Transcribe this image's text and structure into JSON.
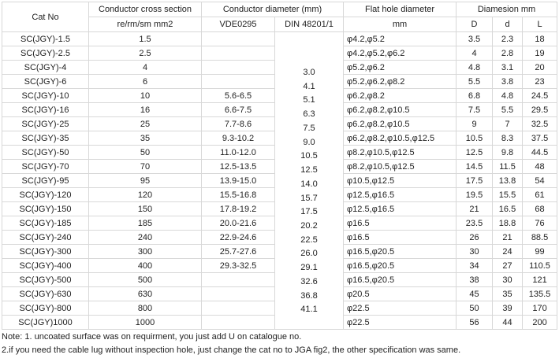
{
  "header": {
    "cat_no": "Cat No",
    "cross_section": "Conductor cross section",
    "cross_unit": "re/rm/sm mm2",
    "diameter": "Conductor diameter (mm)",
    "vde": "VDE0295",
    "din": "DIN 48201/1",
    "flat_hole": "Flat hole diameter",
    "flat_unit": "mm",
    "dimension": "Diamesion mm",
    "D": "D",
    "d": "d",
    "L": "L"
  },
  "table": {
    "rows": [
      [
        "SC(JGY)-1.5",
        "1.5",
        null,
        "φ4.2,φ5.2",
        "3.5",
        "2.3",
        "18"
      ],
      [
        "SC(JGY)-2.5",
        "2.5",
        null,
        "φ4.2,φ5.2,φ6.2",
        "4",
        "2.8",
        "19"
      ],
      [
        "SC(JGY)-4",
        "4",
        null,
        "φ5.2,φ6.2",
        "4.8",
        "3.1",
        "20"
      ],
      [
        "SC(JGY)-6",
        "6",
        null,
        "φ5.2,φ6.2,φ8.2",
        "5.5",
        "3.8",
        "23"
      ],
      [
        "SC(JGY)-10",
        "10",
        "5.6-6.5",
        "φ6.2,φ8.2",
        "6.8",
        "4.8",
        "24.5"
      ],
      [
        "SC(JGY)-16",
        "16",
        "6.6-7.5",
        "φ6.2,φ8.2,φ10.5",
        "7.5",
        "5.5",
        "29.5"
      ],
      [
        "SC(JGY)-25",
        "25",
        "7.7-8.6",
        "φ6.2,φ8.2,φ10.5",
        "9",
        "7",
        "32.5"
      ],
      [
        "SC(JGY)-35",
        "35",
        "9.3-10.2",
        "φ6.2,φ8.2,φ10.5,φ12.5",
        "10.5",
        "8.3",
        "37.5"
      ],
      [
        "SC(JGY)-50",
        "50",
        "11.0-12.0",
        "φ8.2,φ10.5,φ12.5",
        "12.5",
        "9.8",
        "44.5"
      ],
      [
        "SC(JGY)-70",
        "70",
        "12.5-13.5",
        "φ8.2,φ10.5,φ12.5",
        "14.5",
        "11.5",
        "48"
      ],
      [
        "SC(JGY)-95",
        "95",
        "13.9-15.0",
        "φ10.5,φ12.5",
        "17.5",
        "13.8",
        "54"
      ],
      [
        "SC(JGY)-120",
        "120",
        "15.5-16.8",
        "φ12.5,φ16.5",
        "19.5",
        "15.5",
        "61"
      ],
      [
        "SC(JGY)-150",
        "150",
        "17.8-19.2",
        "φ12.5,φ16.5",
        "21",
        "16.5",
        "68"
      ],
      [
        "SC(JGY)-185",
        "185",
        "20.0-21.6",
        "φ16.5",
        "23.5",
        "18.8",
        "76"
      ],
      [
        "SC(JGY)-240",
        "240",
        "22.9-24.6",
        "φ16.5",
        "26",
        "21",
        "88.5"
      ],
      [
        "SC(JGY)-300",
        "300",
        "25.7-27.6",
        "φ16.5,φ20.5",
        "30",
        "24",
        "99"
      ],
      [
        "SC(JGY)-400",
        "400",
        "29.3-32.5",
        "φ16.5,φ20.5",
        "34",
        "27",
        "110.5"
      ],
      [
        "SC(JGY)-500",
        "500",
        null,
        "φ16.5,φ20.5",
        "38",
        "30",
        "121"
      ],
      [
        "SC(JGY)-630",
        "630",
        null,
        "φ20.5",
        "45",
        "35",
        "135.5"
      ],
      [
        "SC(JGY)-800",
        "800",
        null,
        "φ22.5",
        "50",
        "39",
        "170"
      ],
      [
        "SC(JGY)1000",
        "1000",
        null,
        "φ22.5",
        "56",
        "44",
        "200"
      ]
    ],
    "din": [
      "3.0",
      "4.1",
      "5.1",
      "6.3",
      "7.5",
      "9.0",
      "10.5",
      "12.5",
      "14.0",
      "15.7",
      "17.5",
      "20.2",
      "22.5",
      "26.0",
      "29.1",
      "32.6",
      "36.8",
      "41.1"
    ]
  },
  "notes": [
    "Note: 1. uncoated surface was on requirment, you just add U on catalogue no.",
    "2.if you need the cable lug without inspection hole, just change the cat no to JGA fig2, the other specification was same."
  ]
}
